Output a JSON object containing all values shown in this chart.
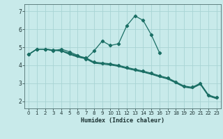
{
  "xlabel": "Humidex (Indice chaleur)",
  "bg_color": "#c8eaea",
  "grid_color": "#a8d4d4",
  "line_color": "#1a6e64",
  "xlim": [
    -0.5,
    23.5
  ],
  "ylim": [
    1.6,
    7.4
  ],
  "xticks": [
    0,
    1,
    2,
    3,
    4,
    5,
    6,
    7,
    8,
    9,
    10,
    11,
    12,
    13,
    14,
    15,
    16,
    17,
    18,
    19,
    20,
    21,
    22,
    23
  ],
  "yticks": [
    2,
    3,
    4,
    5,
    6,
    7
  ],
  "lines": [
    {
      "x": [
        0,
        1,
        2,
        3,
        4,
        5,
        6,
        7,
        8,
        9,
        10,
        11,
        12,
        13,
        14,
        15,
        16
      ],
      "y": [
        4.6,
        4.9,
        4.9,
        4.8,
        4.9,
        4.75,
        4.55,
        4.35,
        4.8,
        5.35,
        5.1,
        5.2,
        6.2,
        6.75,
        6.5,
        5.7,
        4.7
      ],
      "has_markers": true
    },
    {
      "x": [
        0,
        1,
        2,
        3,
        4,
        5,
        6,
        7,
        8,
        9,
        10,
        11,
        12,
        13,
        14,
        15,
        16,
        17,
        18,
        19,
        20,
        21,
        22,
        23
      ],
      "y": [
        4.6,
        4.9,
        4.9,
        4.85,
        4.82,
        4.67,
        4.52,
        4.42,
        4.18,
        4.13,
        4.08,
        4.0,
        3.88,
        3.78,
        3.68,
        3.56,
        3.42,
        3.3,
        3.08,
        2.85,
        2.78,
        3.0,
        2.35,
        2.2
      ],
      "has_markers": true
    },
    {
      "x": [
        0,
        1,
        2,
        3,
        4,
        5,
        6,
        7,
        8,
        9,
        10,
        11,
        12,
        13,
        14,
        15,
        16,
        17,
        18,
        19,
        20,
        21,
        22,
        23
      ],
      "y": [
        4.6,
        4.9,
        4.9,
        4.85,
        4.82,
        4.63,
        4.48,
        4.38,
        4.14,
        4.09,
        4.04,
        3.96,
        3.84,
        3.74,
        3.64,
        3.52,
        3.38,
        3.26,
        3.04,
        2.81,
        2.74,
        2.96,
        2.31,
        2.16
      ],
      "has_markers": false
    },
    {
      "x": [
        0,
        1,
        2,
        3,
        4,
        5,
        6,
        7,
        8,
        9,
        10,
        11,
        12,
        13,
        14,
        15,
        16,
        17,
        18,
        19,
        20,
        21,
        22,
        23
      ],
      "y": [
        4.6,
        4.9,
        4.9,
        4.83,
        4.8,
        4.61,
        4.46,
        4.36,
        4.12,
        4.07,
        4.02,
        3.94,
        3.82,
        3.72,
        3.62,
        3.5,
        3.36,
        3.24,
        3.02,
        2.79,
        2.72,
        2.94,
        2.29,
        2.14
      ],
      "has_markers": false
    }
  ]
}
